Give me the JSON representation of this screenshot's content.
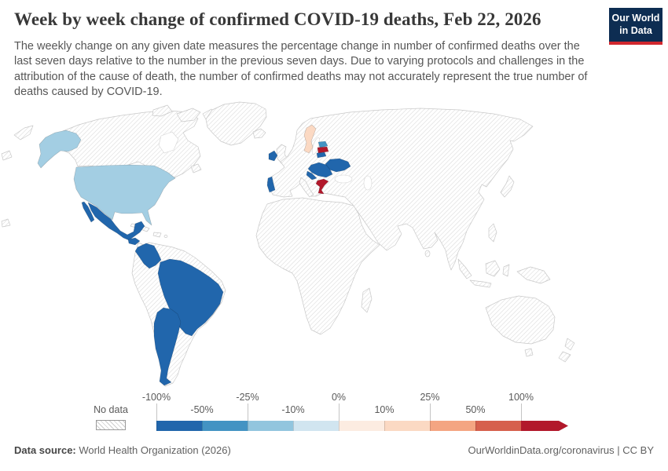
{
  "header": {
    "title": "Week by week change of confirmed COVID-19 deaths, Feb 22, 2026",
    "subtitle": "The weekly change on any given date measures the percentage change in number of confirmed deaths over the last seven days relative to the number in the previous seven days. Due to varying protocols and challenges in the attribution of the cause of death, the number of confirmed deaths may not accurately represent the true number of deaths caused by COVID-19.",
    "logo": {
      "line1": "Our World",
      "line2": "in Data",
      "bg_color": "#0d2d52",
      "accent_color": "#d1272e"
    }
  },
  "legend": {
    "no_data_label": "No data",
    "tick_labels": [
      "-100%",
      "-50%",
      "-25%",
      "-10%",
      "0%",
      "10%",
      "25%",
      "50%",
      "100%"
    ],
    "bins": [
      {
        "range": "-100% to -50%",
        "color": "#2166ac"
      },
      {
        "range": "-50% to -25%",
        "color": "#4393c3"
      },
      {
        "range": "-25% to -10%",
        "color": "#92c5de"
      },
      {
        "range": "-10% to 0%",
        "color": "#d1e5f0"
      },
      {
        "range": "0% to 10%",
        "color": "#fcece1"
      },
      {
        "range": "10% to 25%",
        "color": "#fbd9c3"
      },
      {
        "range": "25% to 50%",
        "color": "#f4a582"
      },
      {
        "range": "50% to 100%",
        "color": "#d6604d"
      },
      {
        "range": "more than 100%",
        "color": "#b2182b"
      }
    ]
  },
  "footer": {
    "source_label": "Data source:",
    "source_value": "World Health Organization (2026)",
    "link": "OurWorldinData.org/coronavirus",
    "separator": "|",
    "license": "CC BY"
  },
  "chart_data": {
    "type": "choropleth_map",
    "title": "Week by week change of confirmed COVID-19 deaths, Feb 22, 2026",
    "date": "Feb 22, 2026",
    "unit": "weekly % change in confirmed COVID-19 deaths",
    "legend_bins": [
      "-100% to -50%",
      "-50% to -25%",
      "-25% to -10%",
      "-10% to 0%",
      "0% to 10%",
      "10% to 25%",
      "25% to 50%",
      "50% to 100%",
      ">100%"
    ],
    "no_data": "hatched pattern (most of Africa, Asia, Canada, Oceania and remaining countries)",
    "countries": [
      {
        "name": "United States",
        "color": "#a3cee3",
        "bin": "-25% to -10%"
      },
      {
        "name": "Mexico",
        "color": "#2166ac",
        "bin": "-100% to -50%"
      },
      {
        "name": "Guatemala",
        "color": "#2166ac",
        "bin": "-100% to -50%"
      },
      {
        "name": "Costa Rica",
        "color": "#2166ac",
        "bin": "-100% to -50%"
      },
      {
        "name": "Colombia",
        "color": "#2166ac",
        "bin": "-100% to -50%"
      },
      {
        "name": "Brazil",
        "color": "#2166ac",
        "bin": "-100% to -50%"
      },
      {
        "name": "Argentina",
        "color": "#2166ac",
        "bin": "-100% to -50%"
      },
      {
        "name": "Chile",
        "color": "#2166ac",
        "bin": "-100% to -50%"
      },
      {
        "name": "Ireland",
        "color": "#2166ac",
        "bin": "-100% to -50%"
      },
      {
        "name": "Portugal",
        "color": "#2166ac",
        "bin": "-100% to -50%"
      },
      {
        "name": "Sweden",
        "color": "#fbd9c3",
        "bin": "10% to 25%"
      },
      {
        "name": "Estonia",
        "color": "#4393c3",
        "bin": "-50% to -25%"
      },
      {
        "name": "Latvia",
        "color": "#b2182b",
        "bin": ">100%"
      },
      {
        "name": "Lithuania",
        "color": "#2166ac",
        "bin": "-100% to -50%"
      },
      {
        "name": "Ukraine",
        "color": "#2166ac",
        "bin": "-100% to -50%"
      },
      {
        "name": "Hungary",
        "color": "#2166ac",
        "bin": "-100% to -50%"
      },
      {
        "name": "Romania",
        "color": "#2166ac",
        "bin": "-100% to -50%"
      },
      {
        "name": "Serbia",
        "color": "#2166ac",
        "bin": "-100% to -50%"
      },
      {
        "name": "Croatia",
        "color": "#2166ac",
        "bin": "-100% to -50%"
      },
      {
        "name": "Bulgaria",
        "color": "#2166ac",
        "bin": "-100% to -50%"
      },
      {
        "name": "Greece",
        "color": "#b2182b",
        "bin": ">100%"
      }
    ]
  }
}
